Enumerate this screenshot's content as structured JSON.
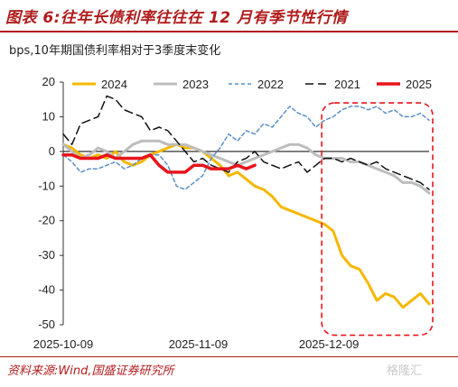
{
  "figure": {
    "title": "图表 6:往年长债利率往往在 12 月有季节性行情",
    "source": "资料来源:Wind,国盛证券研究所",
    "watermark": "格隆汇"
  },
  "chart_data": {
    "type": "line",
    "ylabel": "bps,10年期国债利率相对于3季度末变化",
    "ylim": [
      -50,
      20
    ],
    "yticks": [
      20,
      10,
      0,
      -10,
      -20,
      -30,
      -40,
      -50
    ],
    "xticks": [
      "2025-10-09",
      "2025-11-09",
      "2025-12-09"
    ],
    "x_range": [
      "2025-10-09",
      "2026-01-01"
    ],
    "legend_position": "top",
    "annotation": "red dashed box around December period",
    "highlight_box": {
      "x": [
        "2025-12-09",
        "2026-01-01"
      ],
      "y": [
        -53,
        14
      ]
    },
    "series": [
      {
        "name": "2024",
        "color": "#f5b800",
        "dash": "solid",
        "width": 3,
        "points": [
          [
            "2025-10-09",
            2
          ],
          [
            "2025-10-11",
            1
          ],
          [
            "2025-10-13",
            -1
          ],
          [
            "2025-10-15",
            -2
          ],
          [
            "2025-10-17",
            -1
          ],
          [
            "2025-10-19",
            -2
          ],
          [
            "2025-10-21",
            0
          ],
          [
            "2025-10-23",
            -3
          ],
          [
            "2025-10-25",
            -4
          ],
          [
            "2025-10-27",
            -3
          ],
          [
            "2025-10-29",
            -1
          ],
          [
            "2025-10-31",
            0
          ],
          [
            "2025-11-02",
            1
          ],
          [
            "2025-11-04",
            2
          ],
          [
            "2025-11-06",
            1
          ],
          [
            "2025-11-08",
            1
          ],
          [
            "2025-11-10",
            0
          ],
          [
            "2025-11-12",
            -2
          ],
          [
            "2025-11-14",
            -4
          ],
          [
            "2025-11-16",
            -7
          ],
          [
            "2025-11-18",
            -6
          ],
          [
            "2025-11-20",
            -8
          ],
          [
            "2025-11-22",
            -10
          ],
          [
            "2025-11-24",
            -11
          ],
          [
            "2025-11-26",
            -13
          ],
          [
            "2025-11-28",
            -16
          ],
          [
            "2025-11-30",
            -17
          ],
          [
            "2025-12-02",
            -18
          ],
          [
            "2025-12-04",
            -19
          ],
          [
            "2025-12-06",
            -20
          ],
          [
            "2025-12-08",
            -21
          ],
          [
            "2025-12-10",
            -23
          ],
          [
            "2025-12-12",
            -30
          ],
          [
            "2025-12-14",
            -33
          ],
          [
            "2025-12-16",
            -34
          ],
          [
            "2025-12-18",
            -38
          ],
          [
            "2025-12-20",
            -43
          ],
          [
            "2025-12-22",
            -41
          ],
          [
            "2025-12-24",
            -42
          ],
          [
            "2025-12-26",
            -45
          ],
          [
            "2025-12-28",
            -43
          ],
          [
            "2025-12-30",
            -41
          ],
          [
            "2026-01-01",
            -44
          ]
        ]
      },
      {
        "name": "2023",
        "color": "#bdbdbd",
        "dash": "solid",
        "width": 3,
        "points": [
          [
            "2025-10-09",
            2
          ],
          [
            "2025-10-11",
            0
          ],
          [
            "2025-10-13",
            -2
          ],
          [
            "2025-10-15",
            -1
          ],
          [
            "2025-10-17",
            1
          ],
          [
            "2025-10-19",
            0
          ],
          [
            "2025-10-21",
            -2
          ],
          [
            "2025-10-23",
            0
          ],
          [
            "2025-10-25",
            2
          ],
          [
            "2025-10-27",
            3
          ],
          [
            "2025-10-29",
            3
          ],
          [
            "2025-10-31",
            3
          ],
          [
            "2025-11-02",
            2
          ],
          [
            "2025-11-04",
            2
          ],
          [
            "2025-11-06",
            2
          ],
          [
            "2025-11-08",
            1
          ],
          [
            "2025-11-10",
            0
          ],
          [
            "2025-11-12",
            -1
          ],
          [
            "2025-11-14",
            -2
          ],
          [
            "2025-11-16",
            -3
          ],
          [
            "2025-11-18",
            -4
          ],
          [
            "2025-11-20",
            -3
          ],
          [
            "2025-11-22",
            -2
          ],
          [
            "2025-11-24",
            -1
          ],
          [
            "2025-11-26",
            0
          ],
          [
            "2025-11-28",
            1
          ],
          [
            "2025-11-30",
            2
          ],
          [
            "2025-12-02",
            2
          ],
          [
            "2025-12-04",
            1
          ],
          [
            "2025-12-06",
            -1
          ],
          [
            "2025-12-08",
            -2
          ],
          [
            "2025-12-10",
            -2
          ],
          [
            "2025-12-12",
            -2
          ],
          [
            "2025-12-14",
            -3
          ],
          [
            "2025-12-16",
            -3
          ],
          [
            "2025-12-18",
            -4
          ],
          [
            "2025-12-20",
            -5
          ],
          [
            "2025-12-22",
            -6
          ],
          [
            "2025-12-24",
            -7
          ],
          [
            "2025-12-26",
            -9
          ],
          [
            "2025-12-28",
            -9
          ],
          [
            "2025-12-30",
            -10
          ],
          [
            "2026-01-01",
            -12
          ]
        ]
      },
      {
        "name": "2022",
        "color": "#5b8fc9",
        "dash": "dashed",
        "width": 1.5,
        "points": [
          [
            "2025-10-09",
            -1
          ],
          [
            "2025-10-11",
            -3
          ],
          [
            "2025-10-13",
            -6
          ],
          [
            "2025-10-15",
            -5
          ],
          [
            "2025-10-17",
            -5
          ],
          [
            "2025-10-19",
            -4
          ],
          [
            "2025-10-21",
            -3
          ],
          [
            "2025-10-23",
            -5
          ],
          [
            "2025-10-25",
            -4
          ],
          [
            "2025-10-27",
            -2
          ],
          [
            "2025-10-29",
            -1
          ],
          [
            "2025-10-31",
            -1
          ],
          [
            "2025-11-02",
            -4
          ],
          [
            "2025-11-04",
            -10
          ],
          [
            "2025-11-06",
            -11
          ],
          [
            "2025-11-08",
            -9
          ],
          [
            "2025-11-10",
            -7
          ],
          [
            "2025-11-12",
            -2
          ],
          [
            "2025-11-14",
            1
          ],
          [
            "2025-11-16",
            5
          ],
          [
            "2025-11-18",
            3
          ],
          [
            "2025-11-20",
            6
          ],
          [
            "2025-11-22",
            5
          ],
          [
            "2025-11-24",
            8
          ],
          [
            "2025-11-26",
            7
          ],
          [
            "2025-11-28",
            10
          ],
          [
            "2025-11-30",
            13
          ],
          [
            "2025-12-02",
            11
          ],
          [
            "2025-12-04",
            10
          ],
          [
            "2025-12-06",
            7
          ],
          [
            "2025-12-08",
            9
          ],
          [
            "2025-12-10",
            10
          ],
          [
            "2025-12-12",
            12
          ],
          [
            "2025-12-14",
            13
          ],
          [
            "2025-12-16",
            13
          ],
          [
            "2025-12-18",
            12
          ],
          [
            "2025-12-20",
            13
          ],
          [
            "2025-12-22",
            11
          ],
          [
            "2025-12-24",
            12
          ],
          [
            "2025-12-26",
            10
          ],
          [
            "2025-12-28",
            10
          ],
          [
            "2025-12-30",
            11
          ],
          [
            "2026-01-01",
            9
          ]
        ]
      },
      {
        "name": "2021",
        "color": "#111111",
        "dash": "dashed",
        "width": 1.5,
        "points": [
          [
            "2025-10-09",
            5
          ],
          [
            "2025-10-11",
            2
          ],
          [
            "2025-10-13",
            8
          ],
          [
            "2025-10-15",
            9
          ],
          [
            "2025-10-17",
            10
          ],
          [
            "2025-10-19",
            16
          ],
          [
            "2025-10-21",
            15
          ],
          [
            "2025-10-23",
            12
          ],
          [
            "2025-10-25",
            11
          ],
          [
            "2025-10-27",
            10
          ],
          [
            "2025-10-29",
            6
          ],
          [
            "2025-10-31",
            7
          ],
          [
            "2025-11-02",
            6
          ],
          [
            "2025-11-04",
            3
          ],
          [
            "2025-11-06",
            0
          ],
          [
            "2025-11-08",
            -3
          ],
          [
            "2025-11-10",
            -2
          ],
          [
            "2025-11-12",
            -4
          ],
          [
            "2025-11-14",
            -5
          ],
          [
            "2025-11-16",
            -6
          ],
          [
            "2025-11-18",
            -3
          ],
          [
            "2025-11-20",
            -2
          ],
          [
            "2025-11-22",
            0
          ],
          [
            "2025-11-24",
            -3
          ],
          [
            "2025-11-26",
            -4
          ],
          [
            "2025-11-28",
            -5
          ],
          [
            "2025-11-30",
            -4
          ],
          [
            "2025-12-02",
            -3
          ],
          [
            "2025-12-04",
            -6
          ],
          [
            "2025-12-06",
            -4
          ],
          [
            "2025-12-08",
            -2
          ],
          [
            "2025-12-10",
            -2
          ],
          [
            "2025-12-12",
            -3
          ],
          [
            "2025-12-14",
            -2
          ],
          [
            "2025-12-16",
            -3
          ],
          [
            "2025-12-18",
            -4
          ],
          [
            "2025-12-20",
            -3
          ],
          [
            "2025-12-22",
            -5
          ],
          [
            "2025-12-24",
            -6
          ],
          [
            "2025-12-26",
            -7
          ],
          [
            "2025-12-28",
            -8
          ],
          [
            "2025-12-30",
            -9
          ],
          [
            "2026-01-01",
            -11
          ]
        ]
      },
      {
        "name": "2025",
        "color": "#e8141b",
        "dash": "solid",
        "width": 3.5,
        "points": [
          [
            "2025-10-09",
            -1
          ],
          [
            "2025-10-11",
            -1
          ],
          [
            "2025-10-13",
            -2
          ],
          [
            "2025-10-15",
            -2
          ],
          [
            "2025-10-17",
            -2
          ],
          [
            "2025-10-19",
            -1
          ],
          [
            "2025-10-21",
            -2
          ],
          [
            "2025-10-23",
            -2
          ],
          [
            "2025-10-25",
            -2
          ],
          [
            "2025-10-27",
            -2
          ],
          [
            "2025-10-29",
            -1
          ],
          [
            "2025-10-31",
            -4
          ],
          [
            "2025-11-02",
            -6
          ],
          [
            "2025-11-04",
            -6
          ],
          [
            "2025-11-06",
            -6
          ],
          [
            "2025-11-08",
            -4
          ],
          [
            "2025-11-10",
            -4
          ],
          [
            "2025-11-12",
            -5
          ],
          [
            "2025-11-14",
            -5
          ],
          [
            "2025-11-16",
            -5
          ],
          [
            "2025-11-18",
            -4
          ],
          [
            "2025-11-20",
            -5
          ],
          [
            "2025-11-22",
            -4
          ]
        ]
      }
    ]
  }
}
